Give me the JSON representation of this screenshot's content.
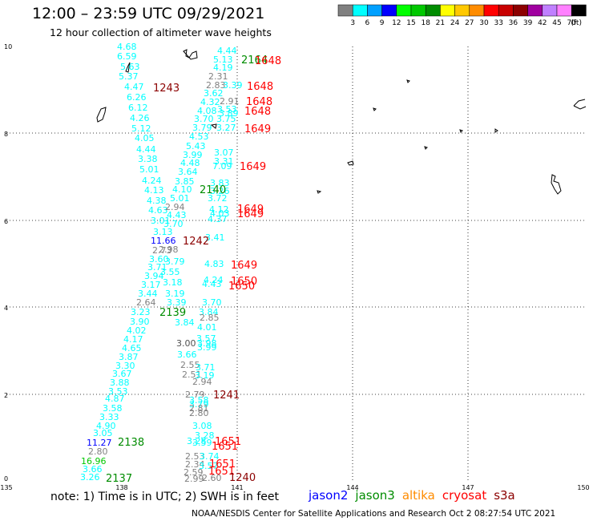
{
  "header": {
    "title": "12:00 – 23:59 UTC 09/29/2021",
    "subtitle": "12 hour collection of altimeter wave heights"
  },
  "color_scale": {
    "colors": [
      "#808080",
      "#00ffff",
      "#00a0ff",
      "#0000ff",
      "#00ff00",
      "#00c800",
      "#008c00",
      "#ffff00",
      "#ffc800",
      "#ff8c00",
      "#ff0000",
      "#c80000",
      "#8c0000",
      "#a000a0",
      "#c080ff",
      "#ff80ff",
      "#000000"
    ],
    "labels": [
      "3",
      "6",
      "9",
      "12",
      "15",
      "18",
      "21",
      "24",
      "27",
      "30",
      "33",
      "36",
      "39",
      "42",
      "45",
      "70"
    ],
    "unit": "(ft)"
  },
  "axes": {
    "x_ticks": [
      "135",
      "138",
      "141",
      "144",
      "147",
      "150"
    ],
    "y_ticks": [
      "10",
      "8",
      "6",
      "4",
      "2",
      "0"
    ]
  },
  "satellites": [
    {
      "name": "jason2",
      "color": "#0000ff"
    },
    {
      "name": "jason3",
      "color": "#008c00"
    },
    {
      "name": "altika",
      "color": "#ff8c00"
    },
    {
      "name": "cryosat",
      "color": "#ff0000"
    },
    {
      "name": "s3a",
      "color": "#8c0000"
    }
  ],
  "footer": {
    "note": "note:  1) Time is in UTC;  2) SWH is in feet",
    "credit": "NOAA/NESDIS Center for Satellite Applications and Research   Oct  2 08:27:54 UTC 2021"
  },
  "track_a": {
    "color": "#00ffff",
    "values": [
      "4.68",
      "6.59",
      "5.63",
      "5.37",
      "4.47",
      "6.26",
      "6.12",
      "4.26",
      "5.12",
      "4.05",
      "4.44",
      "3.38",
      "5.01",
      "4.24",
      "4.13",
      "4.38",
      "4.63",
      "3.01",
      "3.13",
      "11.66",
      "2.73",
      "3.60",
      "3.71",
      "3.94",
      "3.17",
      "3.44",
      "2.64",
      "3.23",
      "3.90",
      "4.02",
      "4.17",
      "4.65",
      "3.87",
      "3.30",
      "3.67",
      "3.88",
      "3.53",
      "4.87",
      "3.58",
      "3.33",
      "4.90",
      "3.05",
      "11.27",
      "2.80",
      "16.96",
      "3.66",
      "3.26"
    ]
  },
  "track_b": {
    "color": "#00ffff",
    "values": [
      "4.44",
      "5.13",
      "4.19",
      "2.31",
      "2.83",
      "3.39",
      "3.62",
      "4.32",
      "2.91",
      "4.08",
      "3.53",
      "3.89",
      "3.70",
      "3.75",
      "3.79",
      "3.27",
      "4.53",
      "5.43",
      "3.07",
      "3.99",
      "3.31",
      "4.48",
      "7.09",
      "3.64",
      "3.85",
      "3.83",
      "4.10",
      "3.26",
      "5.01",
      "3.72",
      "2.94",
      "4.43",
      "4.12",
      "4.03",
      "3.70",
      "4.37",
      "3.41",
      "2.98",
      "3.79",
      "4.83",
      "3.55",
      "4.24",
      "3.18",
      "4.43",
      "3.19",
      "3.39",
      "3.70",
      "3.84",
      "2.85",
      "3.84",
      "4.01",
      "3.00",
      "3.57",
      "3.98",
      "3.99",
      "3.66",
      "2.55",
      "3.71",
      "2.51",
      "3.19",
      "2.94",
      "2.79",
      "3.58",
      "3.79",
      "2.81",
      "2.80",
      "3.08",
      "3.28",
      "3.28",
      "3.59",
      "2.53",
      "3.74",
      "2.34",
      "3.57",
      "2.59",
      "2.99",
      "2.60"
    ]
  },
  "passes": [
    {
      "label": "2164",
      "color": "#008c00"
    },
    {
      "label": "1648",
      "color": "#ff0000"
    },
    {
      "label": "1243",
      "color": "#8c0000"
    },
    {
      "label": "1648",
      "color": "#ff0000"
    },
    {
      "label": "1648",
      "color": "#ff0000"
    },
    {
      "label": "1648",
      "color": "#ff0000"
    },
    {
      "label": "1649",
      "color": "#ff0000"
    },
    {
      "label": "1649",
      "color": "#ff0000"
    },
    {
      "label": "2140",
      "color": "#008c00"
    },
    {
      "label": "1649",
      "color": "#ff0000"
    },
    {
      "label": "1649",
      "color": "#ff0000"
    },
    {
      "label": "1242",
      "color": "#8c0000"
    },
    {
      "label": "1649",
      "color": "#ff0000"
    },
    {
      "label": "1650",
      "color": "#ff0000"
    },
    {
      "label": "1650",
      "color": "#ff0000"
    },
    {
      "label": "2139",
      "color": "#008c00"
    },
    {
      "label": "1241",
      "color": "#8c0000"
    },
    {
      "label": "2138",
      "color": "#008c00"
    },
    {
      "label": "1651",
      "color": "#ff0000"
    },
    {
      "label": "1651",
      "color": "#ff0000"
    },
    {
      "label": "1651",
      "color": "#ff0000"
    },
    {
      "label": "1651",
      "color": "#ff0000"
    },
    {
      "label": "1240",
      "color": "#8c0000"
    },
    {
      "label": "2137",
      "color": "#008c00"
    }
  ]
}
